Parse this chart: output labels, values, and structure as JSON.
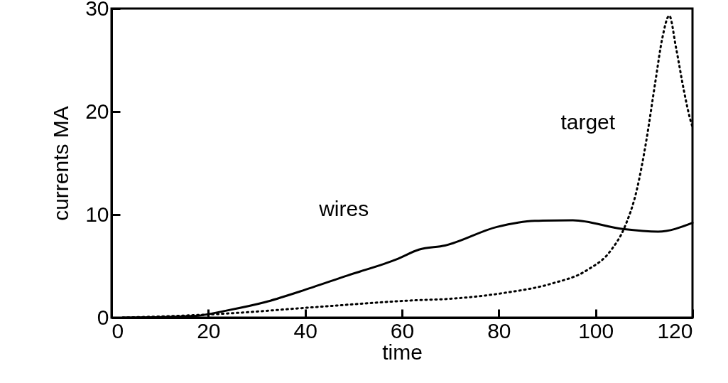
{
  "chart_data": {
    "type": "line",
    "xlabel": "time",
    "ylabel": "currents MA",
    "xlim": [
      0,
      120
    ],
    "ylim": [
      0,
      30
    ],
    "xticks": [
      0,
      20,
      40,
      60,
      80,
      100,
      120
    ],
    "yticks": [
      0,
      10,
      20,
      30
    ],
    "grid": false,
    "series": [
      {
        "name": "wires",
        "color": "#000000",
        "line_style": "solid",
        "x": [
          2.3,
          17,
          23.9,
          31.7,
          39,
          48.8,
          59.1,
          63.5,
          68.9,
          79.6,
          87.4,
          95.3,
          105.6,
          112.9,
          120
        ],
        "values": [
          0,
          0.15,
          0.7,
          1.5,
          2.55,
          4.1,
          5.7,
          6.6,
          7.0,
          8.8,
          9.4,
          9.45,
          8.6,
          8.35,
          9.2
        ]
      },
      {
        "name": "target",
        "color": "#000000",
        "line_style": "dotted",
        "x": [
          2.3,
          23.9,
          41.5,
          63.5,
          68.9,
          81.1,
          90.9,
          98.2,
          103.1,
          106,
          108.5,
          110.4,
          112.3,
          113.8,
          115.2,
          116.6,
          118.2,
          119.5,
          120
        ],
        "values": [
          0,
          0.4,
          1.0,
          1.7,
          1.8,
          2.4,
          3.3,
          4.6,
          6.5,
          8.8,
          12.4,
          17,
          22.8,
          27.2,
          29.3,
          26.2,
          22.1,
          19.3,
          18.5
        ]
      }
    ]
  }
}
